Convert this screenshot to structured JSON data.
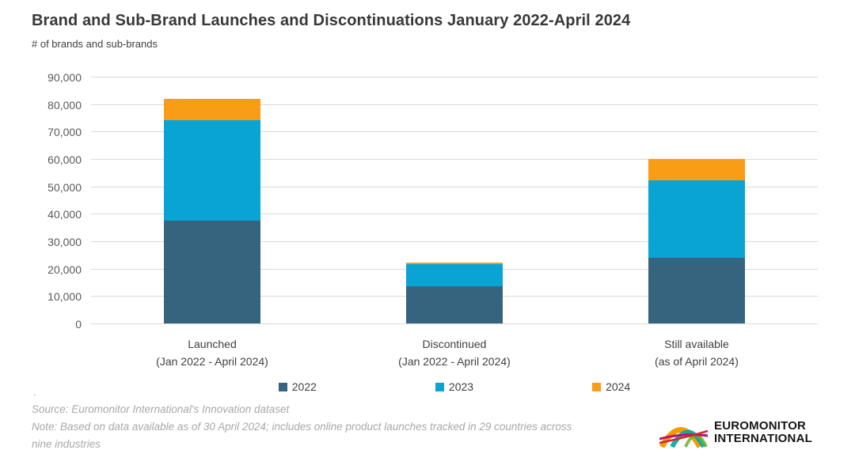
{
  "header": {
    "title": "Brand and Sub-Brand Launches and Discontinuations January 2022-April 2024",
    "subtitle": "# of brands and sub-brands"
  },
  "chart_data": {
    "type": "bar",
    "stacked": true,
    "title": "Brand and Sub-Brand Launches and Discontinuations January 2022-April 2024",
    "ylabel": "# of brands and sub-brands",
    "ylim": [
      0,
      90000
    ],
    "ytick_step": 10000,
    "yticks": [
      "0",
      "10,000",
      "20,000",
      "30,000",
      "40,000",
      "50,000",
      "60,000",
      "70,000",
      "80,000",
      "90,000"
    ],
    "grid": true,
    "legend_position": "bottom",
    "categories": [
      {
        "label": "Launched",
        "sublabel": "(Jan 2022 - April 2024)"
      },
      {
        "label": "Discontinued",
        "sublabel": "(Jan 2022 - April 2024)"
      },
      {
        "label": "Still available",
        "sublabel": "(as of April 2024)"
      }
    ],
    "series": [
      {
        "name": "2022",
        "color": "#36647E",
        "values": [
          37500,
          13500,
          24000
        ]
      },
      {
        "name": "2023",
        "color": "#09A4D4",
        "values": [
          36500,
          8200,
          28200
        ]
      },
      {
        "name": "2024",
        "color": "#FA9D16",
        "values": [
          8000,
          500,
          7800
        ]
      }
    ],
    "totals": [
      82000,
      22200,
      60000
    ]
  },
  "footer": {
    "dot": ".",
    "source": "Source: Euromonitor International's Innovation dataset",
    "note": "Note: Based on data available as of 30 April 2024; includes online product launches tracked in 29 countries across nine industries"
  },
  "logo": {
    "line1": "EUROMONITOR",
    "line2": "INTERNATIONAL",
    "arc_colors": [
      "#F59B00",
      "#00A7A0",
      "#6FB02C",
      "#C20F6F",
      "#D22630"
    ]
  }
}
